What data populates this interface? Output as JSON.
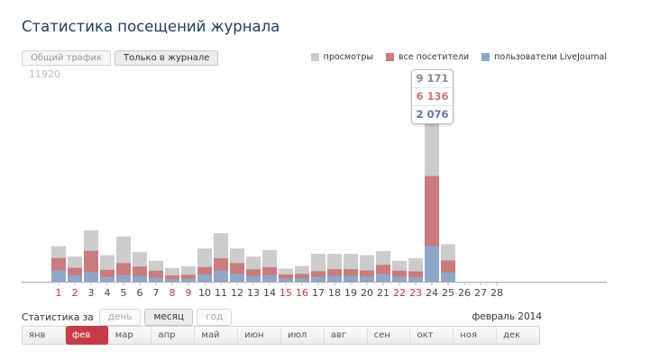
{
  "page_title": "Статистика посещений журнала",
  "tabs": [
    {
      "label": "Общий трафик",
      "active": false
    },
    {
      "label": "Только в журнале",
      "active": true
    }
  ],
  "legend": [
    {
      "label": "просмотры",
      "color": "#cccccc"
    },
    {
      "label": "все посетители",
      "color": "#c97b7d"
    },
    {
      "label": "пользователи LiveJournal",
      "color": "#8ea6c9"
    }
  ],
  "tooltip": {
    "views": "9 171",
    "visitors": "6 136",
    "lj_users": "2 076",
    "colors": {
      "views": "#888888",
      "visitors": "#c9757a",
      "lj_users": "#5a7aa8"
    }
  },
  "chart_data": {
    "type": "bar",
    "stacked": "overlay",
    "ymax_label": "11920",
    "ylim": [
      0,
      11920
    ],
    "x_day_labels": [
      "1",
      "2",
      "3",
      "4",
      "5",
      "6",
      "7",
      "8",
      "9",
      "10",
      "11",
      "12",
      "13",
      "14",
      "15",
      "16",
      "17",
      "18",
      "19",
      "20",
      "21",
      "22",
      "23",
      "24",
      "25",
      "26",
      "27",
      "28"
    ],
    "weekend_days": [
      "1",
      "2",
      "8",
      "9",
      "15",
      "16",
      "22",
      "23"
    ],
    "weekend_color": "#c03a48",
    "weekday_color": "#444444",
    "series": [
      {
        "name": "просмотры",
        "color": "#cccccc",
        "values": [
          2060,
          1460,
          2980,
          1540,
          2630,
          1720,
          1210,
          800,
          890,
          1930,
          2820,
          1930,
          1460,
          1840,
          760,
          910,
          1620,
          1620,
          1620,
          1540,
          1780,
          1210,
          1370,
          9171,
          2180,
          null,
          null,
          null
        ]
      },
      {
        "name": "все посетители",
        "color": "#c97b7d",
        "values": [
          1380,
          810,
          1790,
          690,
          1080,
          880,
          640,
          360,
          400,
          850,
          1360,
          1080,
          720,
          840,
          420,
          450,
          610,
          730,
          730,
          650,
          980,
          640,
          600,
          6136,
          1230,
          null,
          null,
          null
        ]
      },
      {
        "name": "пользователи LiveJournal",
        "color": "#8ea6c9",
        "values": [
          650,
          370,
          560,
          280,
          400,
          330,
          240,
          150,
          170,
          430,
          640,
          470,
          330,
          390,
          190,
          200,
          290,
          350,
          330,
          300,
          440,
          300,
          270,
          2076,
          540,
          null,
          null,
          null
        ]
      }
    ]
  },
  "period": {
    "label": "Статистика за",
    "options": [
      {
        "label": "день",
        "active": false
      },
      {
        "label": "месяц",
        "active": true
      },
      {
        "label": "год",
        "active": false
      }
    ],
    "current": "февраль 2014"
  },
  "months": [
    {
      "label": "янв",
      "active": false
    },
    {
      "label": "фев",
      "active": true
    },
    {
      "label": "мар",
      "active": false
    },
    {
      "label": "апр",
      "active": false
    },
    {
      "label": "май",
      "active": false
    },
    {
      "label": "июн",
      "active": false
    },
    {
      "label": "июл",
      "active": false
    },
    {
      "label": "авг",
      "active": false
    },
    {
      "label": "сен",
      "active": false
    },
    {
      "label": "окт",
      "active": false
    },
    {
      "label": "ноя",
      "active": false
    },
    {
      "label": "дек",
      "active": false
    }
  ]
}
